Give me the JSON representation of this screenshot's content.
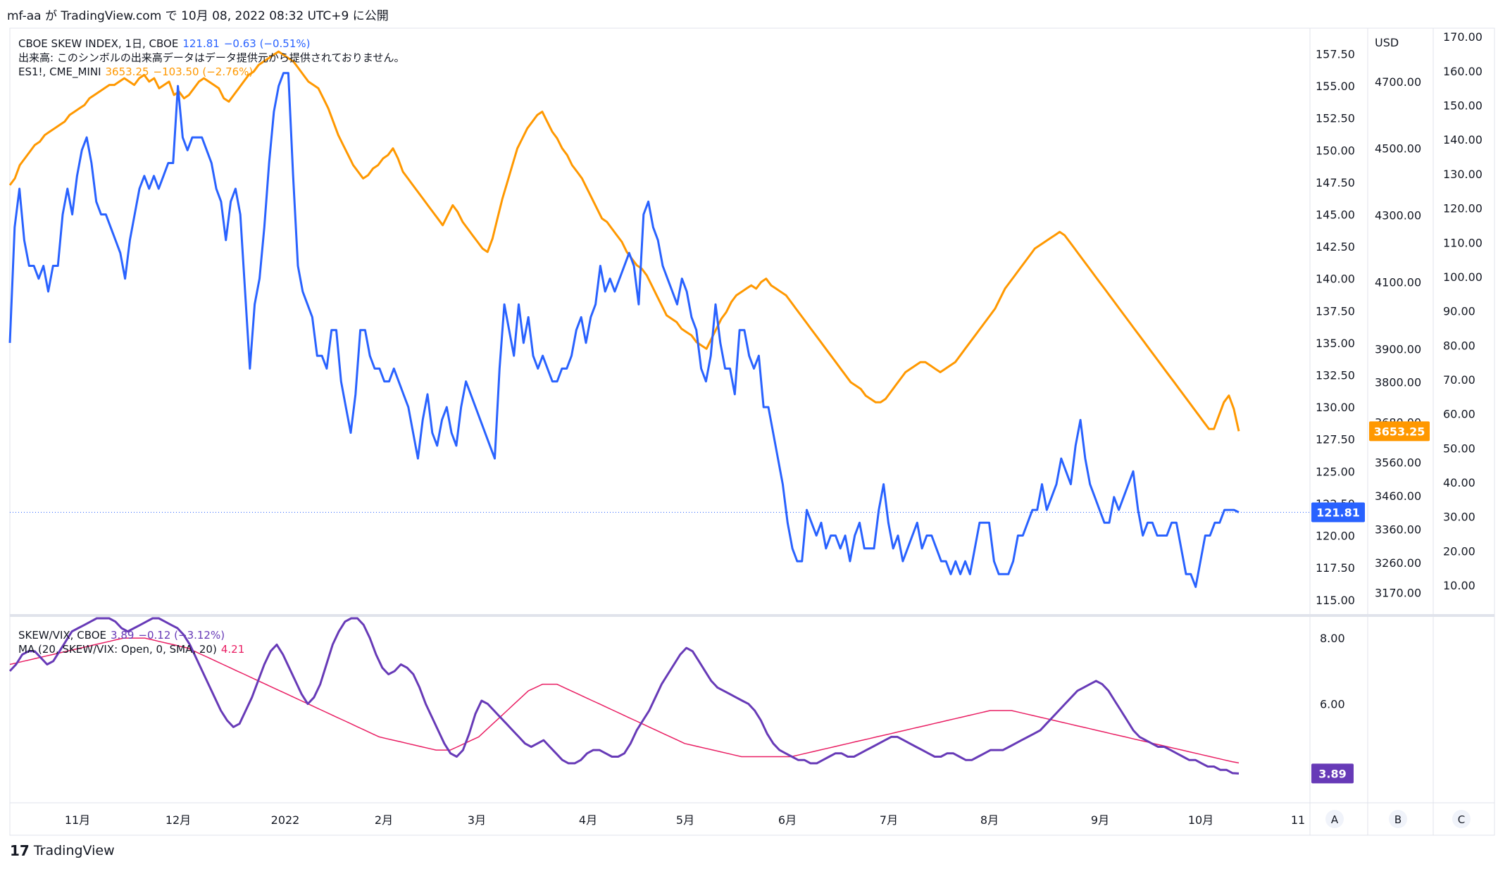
{
  "header": {
    "publish_line": "mf-aa が TradingView.com で 10月 08, 2022 08:32 UTC+9 に公開"
  },
  "main_legend": {
    "skew_label": "CBOE SKEW INDEX, 1日, CBOE",
    "skew_value": "121.81",
    "skew_change": "−0.63 (−0.51%)",
    "volume_note": "出来高: このシンボルの出来高データはデータ提供元から提供されておりません。",
    "es_label": "ES1!, CME_MINI",
    "es_value": "3653.25",
    "es_change": "−103.50 (−2.76%)"
  },
  "lower_legend": {
    "ratio_label": "SKEW/VIX, CBOE",
    "ratio_value": "3.89",
    "ratio_change": "−0.12 (−3.12%)",
    "ma_label": "MA (20, SKEW/VIX: Open, 0, SMA, 20)",
    "ma_value": "4.21"
  },
  "axes": {
    "usd_label": "USD",
    "skew_ticks": [
      "157.50",
      "155.00",
      "152.50",
      "150.00",
      "147.50",
      "145.00",
      "142.50",
      "140.00",
      "137.50",
      "135.00",
      "132.50",
      "130.00",
      "127.50",
      "125.00",
      "122.50",
      "120.00",
      "117.50",
      "115.00"
    ],
    "es_ticks": [
      "4700.00",
      "4500.00",
      "4300.00",
      "4100.00",
      "3900.00",
      "3800.00",
      "3680.00",
      "3560.00",
      "3460.00",
      "3360.00",
      "3260.00",
      "3170.00"
    ],
    "c_ticks": [
      "170.00",
      "160.00",
      "150.00",
      "140.00",
      "130.00",
      "120.00",
      "110.00",
      "100.00",
      "90.00",
      "80.00",
      "70.00",
      "60.00",
      "50.00",
      "40.00",
      "30.00",
      "20.00",
      "10.00"
    ],
    "ratio_ticks": [
      "8.00",
      "6.00"
    ],
    "x_ticks": [
      "11月",
      "12月",
      "2022",
      "2月",
      "3月",
      "4月",
      "5月",
      "6月",
      "7月",
      "8月",
      "9月",
      "10月",
      "11"
    ],
    "corner_buttons": [
      "A",
      "B",
      "C"
    ],
    "last_skew_tag": "121.81",
    "last_es_tag": "3653.25",
    "last_ratio_tag": "3.89"
  },
  "colors": {
    "skew": "#2962ff",
    "es": "#ff9800",
    "ratio": "#673ab7",
    "ma": "#e91e63",
    "dotted": "#2962ff"
  },
  "branding": {
    "logo_text": "TradingView"
  },
  "chart_data": {
    "type": "line",
    "x_range": [
      "2021-10-08",
      "2022-10-07"
    ],
    "series": [
      {
        "name": "CBOE SKEW INDEX",
        "axis": "left-scale",
        "ylim": [
          114,
          159.5
        ],
        "values": [
          135,
          144,
          147,
          143,
          141,
          141,
          140,
          141,
          139,
          141,
          141,
          145,
          147,
          145,
          148,
          150,
          151,
          149,
          146,
          145,
          145,
          144,
          143,
          142,
          140,
          143,
          145,
          147,
          148,
          147,
          148,
          147,
          148,
          149,
          149,
          155,
          151,
          150,
          151,
          151,
          151,
          150,
          149,
          147,
          146,
          143,
          146,
          147,
          145,
          139,
          133,
          138,
          140,
          144,
          149,
          153,
          155,
          156,
          156,
          148,
          141,
          139,
          138,
          137,
          134,
          134,
          133,
          136,
          136,
          132,
          130,
          128,
          131,
          136,
          136,
          134,
          133,
          133,
          132,
          132,
          133,
          132,
          131,
          130,
          128,
          126,
          129,
          131,
          128,
          127,
          129,
          130,
          128,
          127,
          130,
          132,
          131,
          130,
          129,
          128,
          127,
          126,
          133,
          138,
          136,
          134,
          138,
          135,
          137,
          134,
          133,
          134,
          133,
          132,
          132,
          133,
          133,
          134,
          136,
          137,
          135,
          137,
          138,
          141,
          139,
          140,
          139,
          140,
          141,
          142,
          141,
          138,
          145,
          146,
          144,
          143,
          141,
          140,
          139,
          138,
          140,
          139,
          137,
          136,
          133,
          132,
          134,
          138,
          135,
          133,
          133,
          131,
          136,
          136,
          134,
          133,
          134,
          130,
          130,
          128,
          126,
          124,
          121,
          119,
          118,
          118,
          122,
          121,
          120,
          121,
          119,
          120,
          120,
          119,
          120,
          118,
          120,
          121,
          119,
          119,
          119,
          122,
          124,
          121,
          119,
          120,
          118,
          119,
          120,
          121,
          119,
          120,
          120,
          119,
          118,
          118,
          117,
          118,
          117,
          118,
          117,
          119,
          121,
          121,
          121,
          118,
          117,
          117,
          117,
          118,
          120,
          120,
          121,
          122,
          122,
          124,
          122,
          123,
          124,
          126,
          125,
          124,
          127,
          129,
          126,
          124,
          123,
          122,
          121,
          121,
          123,
          122,
          123,
          124,
          125,
          122,
          120,
          121,
          121,
          120,
          120,
          120,
          121,
          121,
          119,
          117,
          117,
          116,
          118,
          120,
          120,
          121,
          121,
          122,
          122,
          122,
          121.81
        ]
      },
      {
        "name": "ES1!, CME_MINI",
        "axis": "right-scale",
        "ylim": [
          3110,
          4860
        ],
        "values": [
          4390,
          4410,
          4450,
          4470,
          4490,
          4510,
          4520,
          4540,
          4550,
          4560,
          4570,
          4580,
          4600,
          4610,
          4620,
          4630,
          4650,
          4660,
          4670,
          4680,
          4690,
          4690,
          4700,
          4710,
          4700,
          4690,
          4710,
          4720,
          4700,
          4710,
          4680,
          4690,
          4700,
          4660,
          4670,
          4650,
          4660,
          4680,
          4700,
          4710,
          4700,
          4690,
          4680,
          4650,
          4640,
          4660,
          4680,
          4700,
          4720,
          4730,
          4750,
          4760,
          4770,
          4780,
          4790,
          4780,
          4770,
          4760,
          4740,
          4720,
          4700,
          4690,
          4680,
          4650,
          4620,
          4580,
          4540,
          4510,
          4480,
          4450,
          4430,
          4410,
          4420,
          4440,
          4450,
          4470,
          4480,
          4500,
          4470,
          4430,
          4410,
          4390,
          4370,
          4350,
          4330,
          4310,
          4290,
          4270,
          4300,
          4330,
          4310,
          4280,
          4260,
          4240,
          4220,
          4200,
          4190,
          4230,
          4290,
          4350,
          4400,
          4450,
          4500,
          4530,
          4560,
          4580,
          4600,
          4610,
          4580,
          4550,
          4530,
          4500,
          4480,
          4450,
          4430,
          4410,
          4380,
          4350,
          4320,
          4290,
          4280,
          4260,
          4240,
          4220,
          4190,
          4170,
          4150,
          4140,
          4120,
          4090,
          4060,
          4030,
          4000,
          3990,
          3980,
          3960,
          3950,
          3940,
          3920,
          3910,
          3900,
          3930,
          3960,
          3990,
          4010,
          4040,
          4060,
          4070,
          4080,
          4090,
          4080,
          4100,
          4110,
          4090,
          4080,
          4070,
          4060,
          4040,
          4020,
          4000,
          3980,
          3960,
          3940,
          3920,
          3900,
          3880,
          3860,
          3840,
          3820,
          3800,
          3790,
          3780,
          3760,
          3750,
          3740,
          3740,
          3750,
          3770,
          3790,
          3810,
          3830,
          3840,
          3850,
          3860,
          3860,
          3850,
          3840,
          3830,
          3840,
          3850,
          3860,
          3880,
          3900,
          3920,
          3940,
          3960,
          3980,
          4000,
          4020,
          4050,
          4080,
          4100,
          4120,
          4140,
          4160,
          4180,
          4200,
          4210,
          4220,
          4230,
          4240,
          4250,
          4240,
          4220,
          4200,
          4180,
          4160,
          4140,
          4120,
          4100,
          4080,
          4060,
          4040,
          4020,
          4000,
          3980,
          3960,
          3940,
          3920,
          3900,
          3880,
          3860,
          3840,
          3820,
          3800,
          3780,
          3760,
          3740,
          3720,
          3700,
          3680,
          3660,
          3660,
          3700,
          3740,
          3760,
          3720,
          3653.25
        ]
      },
      {
        "name": "SKEW/VIX, CBOE",
        "axis": "lower-pane",
        "ylim": [
          3.0,
          8.6
        ],
        "values": [
          7.0,
          7.2,
          7.5,
          7.6,
          7.6,
          7.4,
          7.2,
          7.3,
          7.6,
          7.9,
          8.2,
          8.3,
          8.4,
          8.5,
          8.6,
          8.6,
          8.6,
          8.5,
          8.3,
          8.2,
          8.3,
          8.4,
          8.5,
          8.6,
          8.6,
          8.5,
          8.4,
          8.3,
          8.1,
          7.8,
          7.4,
          7.0,
          6.6,
          6.2,
          5.8,
          5.5,
          5.3,
          5.4,
          5.8,
          6.2,
          6.7,
          7.2,
          7.6,
          7.8,
          7.5,
          7.1,
          6.7,
          6.3,
          6.0,
          6.2,
          6.6,
          7.2,
          7.8,
          8.2,
          8.5,
          8.6,
          8.6,
          8.4,
          8.0,
          7.5,
          7.1,
          6.9,
          7.0,
          7.2,
          7.1,
          6.9,
          6.5,
          6.0,
          5.6,
          5.2,
          4.8,
          4.5,
          4.4,
          4.6,
          5.1,
          5.7,
          6.1,
          6.0,
          5.8,
          5.6,
          5.4,
          5.2,
          5.0,
          4.8,
          4.7,
          4.8,
          4.9,
          4.7,
          4.5,
          4.3,
          4.2,
          4.2,
          4.3,
          4.5,
          4.6,
          4.6,
          4.5,
          4.4,
          4.4,
          4.5,
          4.8,
          5.2,
          5.5,
          5.8,
          6.2,
          6.6,
          6.9,
          7.2,
          7.5,
          7.7,
          7.6,
          7.3,
          7.0,
          6.7,
          6.5,
          6.4,
          6.3,
          6.2,
          6.1,
          6.0,
          5.8,
          5.5,
          5.1,
          4.8,
          4.6,
          4.5,
          4.4,
          4.3,
          4.3,
          4.2,
          4.2,
          4.3,
          4.4,
          4.5,
          4.5,
          4.4,
          4.4,
          4.5,
          4.6,
          4.7,
          4.8,
          4.9,
          5.0,
          5.0,
          4.9,
          4.8,
          4.7,
          4.6,
          4.5,
          4.4,
          4.4,
          4.5,
          4.5,
          4.4,
          4.3,
          4.3,
          4.4,
          4.5,
          4.6,
          4.6,
          4.6,
          4.7,
          4.8,
          4.9,
          5.0,
          5.1,
          5.2,
          5.4,
          5.6,
          5.8,
          6.0,
          6.2,
          6.4,
          6.5,
          6.6,
          6.7,
          6.6,
          6.4,
          6.1,
          5.8,
          5.5,
          5.2,
          5.0,
          4.9,
          4.8,
          4.7,
          4.7,
          4.6,
          4.5,
          4.4,
          4.3,
          4.3,
          4.2,
          4.1,
          4.1,
          4.0,
          4.0,
          3.9,
          3.89
        ]
      },
      {
        "name": "MA (20, SKEW/VIX: Open, 0, SMA, 20)",
        "axis": "lower-pane",
        "ylim": [
          3.0,
          8.6
        ],
        "values": [
          7.2,
          7.25,
          7.3,
          7.35,
          7.4,
          7.45,
          7.5,
          7.55,
          7.6,
          7.65,
          7.7,
          7.75,
          7.8,
          7.85,
          7.9,
          7.95,
          8.0,
          8.0,
          8.0,
          8.0,
          7.95,
          7.9,
          7.85,
          7.8,
          7.75,
          7.7,
          7.6,
          7.5,
          7.4,
          7.3,
          7.2,
          7.1,
          7.0,
          6.9,
          6.8,
          6.7,
          6.6,
          6.5,
          6.4,
          6.3,
          6.2,
          6.1,
          6.0,
          5.9,
          5.8,
          5.7,
          5.6,
          5.5,
          5.4,
          5.3,
          5.2,
          5.1,
          5.0,
          4.95,
          4.9,
          4.85,
          4.8,
          4.75,
          4.7,
          4.65,
          4.6,
          4.6,
          4.6,
          4.7,
          4.8,
          4.9,
          5.0,
          5.2,
          5.4,
          5.6,
          5.8,
          6.0,
          6.2,
          6.4,
          6.5,
          6.6,
          6.6,
          6.6,
          6.5,
          6.4,
          6.3,
          6.2,
          6.1,
          6.0,
          5.9,
          5.8,
          5.7,
          5.6,
          5.5,
          5.4,
          5.3,
          5.2,
          5.1,
          5.0,
          4.9,
          4.8,
          4.75,
          4.7,
          4.65,
          4.6,
          4.55,
          4.5,
          4.45,
          4.4,
          4.4,
          4.4,
          4.4,
          4.4,
          4.4,
          4.4,
          4.4,
          4.45,
          4.5,
          4.55,
          4.6,
          4.65,
          4.7,
          4.75,
          4.8,
          4.85,
          4.9,
          4.95,
          5.0,
          5.05,
          5.1,
          5.15,
          5.2,
          5.25,
          5.3,
          5.35,
          5.4,
          5.45,
          5.5,
          5.55,
          5.6,
          5.65,
          5.7,
          5.75,
          5.8,
          5.8,
          5.8,
          5.8,
          5.75,
          5.7,
          5.65,
          5.6,
          5.55,
          5.5,
          5.45,
          5.4,
          5.35,
          5.3,
          5.25,
          5.2,
          5.15,
          5.1,
          5.05,
          5.0,
          4.95,
          4.9,
          4.85,
          4.8,
          4.75,
          4.7,
          4.65,
          4.6,
          4.55,
          4.5,
          4.45,
          4.4,
          4.35,
          4.3,
          4.25,
          4.21
        ]
      }
    ],
    "x_ticks": [
      "11月",
      "12月",
      "2022",
      "2月",
      "3月",
      "4月",
      "5月",
      "6月",
      "7月",
      "8月",
      "9月",
      "10月",
      "11"
    ]
  }
}
